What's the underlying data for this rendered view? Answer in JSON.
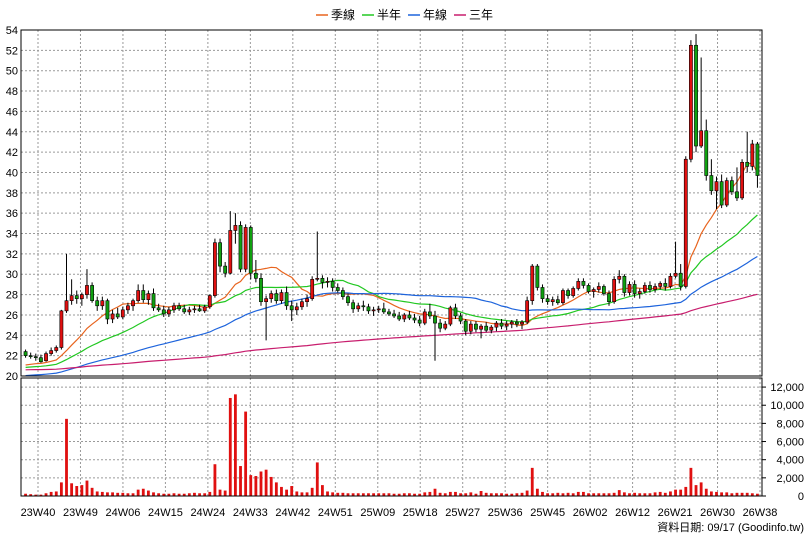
{
  "chart_data": {
    "type": "candlestick",
    "legend": {
      "placement": "top-center",
      "items": [
        {
          "label": "季線",
          "color": "#e8641e"
        },
        {
          "label": "半年",
          "color": "#22c822"
        },
        {
          "label": "年線",
          "color": "#1e64dc"
        },
        {
          "label": "三年",
          "color": "#c81e6e"
        }
      ]
    },
    "price_axis": {
      "side": "left",
      "ylim": [
        20,
        54
      ],
      "ticks": [
        "54",
        "52",
        "50",
        "48",
        "46",
        "44",
        "42",
        "40",
        "38",
        "36",
        "34",
        "32",
        "30",
        "28",
        "26",
        "24",
        "22",
        "20"
      ]
    },
    "volume_axis": {
      "side": "right",
      "ylim": [
        0,
        13000
      ],
      "ticks": [
        "12,000",
        "10,000",
        "8,000",
        "6,000",
        "4,000",
        "2,000",
        "0"
      ]
    },
    "x_ticks": [
      "23W40",
      "23W49",
      "24W06",
      "24W15",
      "24W24",
      "24W33",
      "24W42",
      "24W51",
      "25W09",
      "25W18",
      "25W27",
      "25W36",
      "25W45",
      "26W02",
      "26W12",
      "26W21",
      "26W30",
      "26W38"
    ],
    "grid": true,
    "up_color": "#e01010",
    "down_color": "#10a010",
    "volume_color": "#e01010",
    "footer_note": "資料日期: 09/17  (Goodinfo.tw)",
    "candles": [
      [
        22.4,
        22.6,
        21.8,
        22
      ],
      [
        22,
        22.3,
        21.7,
        21.9
      ],
      [
        21.9,
        22.2,
        21.5,
        21.8
      ],
      [
        21.8,
        22.1,
        21.3,
        21.4
      ],
      [
        21.5,
        22.4,
        21.4,
        22.2
      ],
      [
        22.2,
        22.8,
        22,
        22.5
      ],
      [
        22.5,
        23,
        22.3,
        22.8
      ],
      [
        22.8,
        26.5,
        22.6,
        26.4
      ],
      [
        26.4,
        32,
        26.2,
        27.4
      ],
      [
        27.4,
        29.5,
        27,
        27.9
      ],
      [
        27.9,
        28.4,
        27.1,
        27.6
      ],
      [
        27.6,
        28.2,
        26.9,
        28
      ],
      [
        28,
        30.5,
        27.6,
        28.9
      ],
      [
        28.9,
        29.2,
        27.2,
        27.4
      ],
      [
        27.4,
        27.8,
        26.4,
        26.9
      ],
      [
        26.9,
        27.8,
        26.5,
        27.4
      ],
      [
        27.4,
        27.6,
        25.1,
        25.6
      ],
      [
        25.6,
        26.5,
        25.2,
        26.1
      ],
      [
        26.1,
        26.7,
        25.6,
        25.8
      ],
      [
        25.8,
        26.8,
        25.6,
        26.5
      ],
      [
        26.5,
        27.2,
        26.1,
        26.9
      ],
      [
        26.9,
        27.6,
        26.4,
        27.4
      ],
      [
        27.4,
        29,
        27.2,
        28.4
      ],
      [
        28.4,
        29,
        27.2,
        27.5
      ],
      [
        27.5,
        28.4,
        27,
        28.1
      ],
      [
        28.1,
        28.6,
        26.4,
        26.7
      ],
      [
        26.7,
        27.1,
        26.3,
        26.5
      ],
      [
        26.5,
        26.9,
        25.8,
        26.1
      ],
      [
        26.1,
        26.8,
        25.8,
        26.5
      ],
      [
        26.5,
        27.2,
        26.2,
        26.9
      ],
      [
        26.9,
        27.2,
        26.4,
        26.6
      ],
      [
        26.6,
        27,
        26.1,
        26.3
      ],
      [
        26.3,
        26.8,
        26,
        26.5
      ],
      [
        26.5,
        26.9,
        26.2,
        26.6
      ],
      [
        26.6,
        27,
        26.3,
        26.4
      ],
      [
        26.4,
        27,
        26.2,
        26.8
      ],
      [
        26.8,
        28,
        26.6,
        27.9
      ],
      [
        27.9,
        33.5,
        27.7,
        33.1
      ],
      [
        33.1,
        33.5,
        30.2,
        30.8
      ],
      [
        30.8,
        31.2,
        29.7,
        30.1
      ],
      [
        30.1,
        36.2,
        30,
        34.3
      ],
      [
        34.3,
        36,
        33,
        34.8
      ],
      [
        34.8,
        35.2,
        30.2,
        30.5
      ],
      [
        30.5,
        34.9,
        30.2,
        34.6
      ],
      [
        34.6,
        34.8,
        29.5,
        30.1
      ],
      [
        30.1,
        31.4,
        29.2,
        29.6
      ],
      [
        29.6,
        30.1,
        26.9,
        27.3
      ],
      [
        27.3,
        27.9,
        23.5,
        27.6
      ],
      [
        27.6,
        28.4,
        27.2,
        28.1
      ],
      [
        28.1,
        28.5,
        27.1,
        27.4
      ],
      [
        27.4,
        28.5,
        27.1,
        28.2
      ],
      [
        28.2,
        28.8,
        26.5,
        26.9
      ],
      [
        26.9,
        27.4,
        25.4,
        26.5
      ],
      [
        26.5,
        27.2,
        26,
        26.8
      ],
      [
        26.8,
        27.6,
        26.5,
        27.3
      ],
      [
        27.3,
        28,
        26.8,
        27.6
      ],
      [
        27.6,
        29.8,
        27.4,
        29.5
      ],
      [
        29.5,
        34.2,
        29.3,
        29.6
      ],
      [
        29.6,
        29.9,
        28.6,
        29.2
      ],
      [
        29.2,
        29.7,
        28.7,
        29.3
      ],
      [
        29.3,
        29.6,
        28.3,
        28.7
      ],
      [
        28.7,
        29.1,
        28.2,
        28.4
      ],
      [
        28.4,
        28.7,
        27.5,
        27.8
      ],
      [
        27.8,
        28.1,
        26.9,
        27.2
      ],
      [
        27.2,
        27.5,
        26.2,
        26.6
      ],
      [
        26.6,
        27.2,
        26.3,
        26.9
      ],
      [
        26.9,
        27.4,
        26.4,
        26.8
      ],
      [
        26.8,
        27.1,
        26.1,
        26.4
      ],
      [
        26.4,
        26.8,
        25.9,
        26.5
      ],
      [
        26.5,
        26.9,
        26.2,
        26.6
      ],
      [
        26.6,
        27.2,
        26.1,
        26.3
      ],
      [
        26.3,
        26.6,
        25.9,
        26.1
      ],
      [
        26.1,
        26.5,
        25.7,
        25.9
      ],
      [
        25.9,
        26.3,
        25.4,
        25.6
      ],
      [
        25.6,
        26.2,
        25.3,
        26
      ],
      [
        26,
        26.4,
        25.5,
        25.7
      ],
      [
        25.7,
        26.1,
        25.2,
        25.5
      ],
      [
        25.5,
        25.9,
        24.9,
        25.2
      ],
      [
        25.2,
        26.6,
        25,
        26.3
      ],
      [
        26.3,
        27.1,
        25.6,
        25.9
      ],
      [
        25.9,
        26.4,
        21.5,
        25.2
      ],
      [
        25.2,
        25.6,
        24.3,
        24.7
      ],
      [
        24.7,
        25.4,
        24.5,
        25.1
      ],
      [
        25.1,
        26.9,
        24.9,
        26.7
      ],
      [
        26.7,
        27.1,
        25.6,
        25.9
      ],
      [
        25.9,
        26.2,
        25.1,
        25.4
      ],
      [
        25.4,
        25.6,
        24,
        24.4
      ],
      [
        24.4,
        25.4,
        24.1,
        25.1
      ],
      [
        25.1,
        25.4,
        24.3,
        24.6
      ],
      [
        24.6,
        25.1,
        23.7,
        24.9
      ],
      [
        24.9,
        25.3,
        24.3,
        24.5
      ],
      [
        24.5,
        25,
        24.2,
        24.8
      ],
      [
        24.8,
        25.4,
        24.4,
        25.2
      ],
      [
        25.2,
        25.6,
        24.6,
        24.9
      ],
      [
        24.9,
        25.4,
        24.5,
        25.1
      ],
      [
        25.1,
        25.5,
        24.7,
        25.3
      ],
      [
        25.3,
        25.6,
        24.8,
        25.1
      ],
      [
        25.1,
        25.5,
        24.6,
        25.3
      ],
      [
        25.3,
        27.8,
        25.1,
        27.4
      ],
      [
        27.4,
        31,
        27,
        30.8
      ],
      [
        30.8,
        31,
        28.4,
        28.7
      ],
      [
        28.7,
        29,
        27.2,
        27.6
      ],
      [
        27.6,
        28,
        27,
        27.3
      ],
      [
        27.3,
        27.8,
        26.9,
        27.5
      ],
      [
        27.5,
        27.9,
        27,
        27.2
      ],
      [
        27.2,
        28.6,
        27,
        28.4
      ],
      [
        28.4,
        28.6,
        27.6,
        27.9
      ],
      [
        27.9,
        28.8,
        27.7,
        28.6
      ],
      [
        28.6,
        29.6,
        28.4,
        29.3
      ],
      [
        29.3,
        29.6,
        28.6,
        28.9
      ],
      [
        28.9,
        29.1,
        28.1,
        28.3
      ],
      [
        28.3,
        28.7,
        27.7,
        28.5
      ],
      [
        28.5,
        29.2,
        28.2,
        28.8
      ],
      [
        28.8,
        29,
        27.9,
        28.1
      ],
      [
        28.1,
        28.4,
        26.9,
        27.3
      ],
      [
        27.3,
        29.8,
        27.1,
        29.5
      ],
      [
        29.5,
        30.4,
        29.1,
        29.8
      ],
      [
        29.8,
        30,
        27.8,
        28.2
      ],
      [
        28.2,
        29.3,
        27.9,
        29
      ],
      [
        29,
        29.4,
        27.7,
        28.1
      ],
      [
        28.1,
        28.6,
        27.6,
        28.3
      ],
      [
        28.3,
        29.2,
        28.1,
        28.9
      ],
      [
        28.9,
        29.3,
        28.2,
        28.5
      ],
      [
        28.5,
        29.1,
        28.2,
        28.8
      ],
      [
        28.8,
        29.3,
        28.5,
        29.1
      ],
      [
        29.1,
        29.6,
        28.4,
        28.8
      ],
      [
        28.8,
        30.1,
        28.6,
        29.8
      ],
      [
        29.8,
        33.2,
        29.6,
        30.1
      ],
      [
        30.1,
        31,
        28.4,
        28.8
      ],
      [
        28.8,
        41.6,
        28.6,
        41.3
      ],
      [
        41.3,
        53,
        41,
        52.5
      ],
      [
        52.5,
        53.6,
        42,
        42.6
      ],
      [
        42.6,
        51.3,
        42.4,
        44.1
      ],
      [
        44.1,
        45.2,
        39.2,
        39.7
      ],
      [
        39.7,
        41.3,
        37.8,
        38.2
      ],
      [
        38.2,
        39.6,
        36.4,
        39.1
      ],
      [
        39.1,
        39.8,
        36.5,
        36.8
      ],
      [
        36.8,
        39.5,
        36.6,
        39.2
      ],
      [
        39.2,
        39.6,
        37.8,
        38.1
      ],
      [
        38.1,
        40.5,
        37.2,
        37.5
      ],
      [
        37.5,
        41.3,
        37.3,
        41
      ],
      [
        41,
        44,
        40,
        40.6
      ],
      [
        40.6,
        43.2,
        40.2,
        42.8
      ],
      [
        42.8,
        43,
        38.5,
        39.7
      ]
    ],
    "volumes": [
      250,
      200,
      150,
      150,
      300,
      450,
      500,
      1500,
      8500,
      1400,
      1100,
      1200,
      1700,
      900,
      500,
      450,
      400,
      400,
      350,
      350,
      300,
      300,
      700,
      800,
      600,
      400,
      300,
      250,
      250,
      300,
      250,
      250,
      300,
      350,
      300,
      300,
      450,
      3500,
      700,
      600,
      10800,
      11200,
      3300,
      9300,
      2300,
      2200,
      2700,
      2900,
      2100,
      1500,
      1000,
      700,
      1100,
      500,
      400,
      400,
      900,
      3700,
      1200,
      500,
      400,
      350,
      350,
      300,
      300,
      300,
      300,
      300,
      300,
      300,
      300,
      300,
      250,
      250,
      300,
      300,
      250,
      250,
      400,
      450,
      800,
      350,
      300,
      450,
      450,
      300,
      300,
      400,
      250,
      550,
      350,
      300,
      300,
      300,
      250,
      250,
      300,
      350,
      600,
      3100,
      800,
      450,
      300,
      300,
      350,
      300,
      350,
      300,
      450,
      450,
      300,
      300,
      300,
      300,
      300,
      350,
      650,
      400,
      300,
      350,
      300,
      300,
      300,
      400,
      450,
      350,
      500,
      700,
      700,
      1000,
      3100,
      1200,
      1500,
      800,
      500,
      450,
      400,
      400,
      300,
      350,
      350,
      350,
      300,
      250
    ]
  }
}
